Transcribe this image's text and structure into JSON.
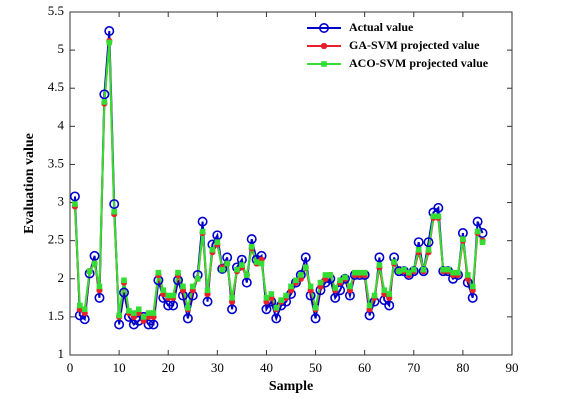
{
  "chart_data": {
    "type": "line",
    "x_label": "Sample",
    "y_label": "Evaluation value",
    "x": [
      1,
      2,
      3,
      4,
      5,
      6,
      7,
      8,
      9,
      10,
      11,
      12,
      13,
      14,
      15,
      16,
      17,
      18,
      19,
      20,
      21,
      22,
      23,
      24,
      25,
      26,
      27,
      28,
      29,
      30,
      31,
      32,
      33,
      34,
      35,
      36,
      37,
      38,
      39,
      40,
      41,
      42,
      43,
      44,
      45,
      46,
      47,
      48,
      49,
      50,
      51,
      52,
      53,
      54,
      55,
      56,
      57,
      58,
      59,
      60,
      61,
      62,
      63,
      64,
      65,
      66,
      67,
      68,
      69,
      70,
      71,
      72,
      73,
      74,
      75,
      76,
      77,
      78,
      79,
      80,
      81,
      82,
      83,
      84
    ],
    "series": [
      {
        "name": "Actual value",
        "color": "#0000cc",
        "marker": "circle",
        "values": [
          3.08,
          1.52,
          1.47,
          2.07,
          2.3,
          1.75,
          4.42,
          5.25,
          2.98,
          1.4,
          1.82,
          1.5,
          1.4,
          1.45,
          1.5,
          1.4,
          1.4,
          1.98,
          1.75,
          1.65,
          1.65,
          1.98,
          1.78,
          1.48,
          1.78,
          2.05,
          2.75,
          1.7,
          2.45,
          2.57,
          2.13,
          2.28,
          1.6,
          2.15,
          2.25,
          1.95,
          2.52,
          2.25,
          2.3,
          1.6,
          1.7,
          1.48,
          1.65,
          1.7,
          1.8,
          1.95,
          2.05,
          2.28,
          1.78,
          1.48,
          1.85,
          1.95,
          2.0,
          1.75,
          1.85,
          2.0,
          1.78,
          2.05,
          2.05,
          2.05,
          1.52,
          1.7,
          2.28,
          1.72,
          1.65,
          2.28,
          2.1,
          2.1,
          2.05,
          2.1,
          2.48,
          2.1,
          2.48,
          2.87,
          2.93,
          2.1,
          2.1,
          2.0,
          2.05,
          2.6,
          1.95,
          1.75,
          2.75,
          2.6
        ]
      },
      {
        "name": "GA-SVM projected value",
        "color": "#e8202a",
        "marker": "star",
        "values": [
          2.95,
          1.6,
          1.55,
          2.1,
          2.2,
          1.85,
          4.3,
          5.12,
          2.85,
          1.5,
          1.95,
          1.55,
          1.5,
          1.55,
          1.45,
          1.5,
          1.5,
          2.05,
          1.8,
          1.75,
          1.75,
          2.05,
          1.85,
          1.6,
          1.85,
          2.0,
          2.6,
          1.8,
          2.35,
          2.45,
          2.15,
          2.2,
          1.7,
          2.1,
          2.15,
          2.05,
          2.4,
          2.2,
          2.25,
          1.7,
          1.75,
          1.6,
          1.7,
          1.75,
          1.85,
          1.95,
          2.0,
          2.15,
          1.85,
          1.6,
          1.9,
          2.0,
          2.05,
          1.85,
          1.95,
          2.0,
          1.85,
          2.05,
          2.05,
          2.05,
          1.6,
          1.75,
          2.15,
          1.8,
          1.75,
          2.2,
          2.1,
          2.1,
          2.05,
          2.1,
          2.35,
          2.1,
          2.35,
          2.8,
          2.8,
          2.1,
          2.1,
          2.05,
          2.05,
          2.5,
          2.0,
          1.85,
          2.6,
          2.5
        ]
      },
      {
        "name": "ACO-SVM projected value",
        "color": "#33dd33",
        "marker": "square",
        "values": [
          2.98,
          1.65,
          1.6,
          2.1,
          2.2,
          1.9,
          4.32,
          5.1,
          2.88,
          1.52,
          1.98,
          1.58,
          1.55,
          1.6,
          1.5,
          1.55,
          1.55,
          2.08,
          1.85,
          1.78,
          1.78,
          2.08,
          1.9,
          1.62,
          1.9,
          2.0,
          2.62,
          1.85,
          2.38,
          2.48,
          2.12,
          2.2,
          1.75,
          2.12,
          2.18,
          2.05,
          2.42,
          2.22,
          2.2,
          1.75,
          1.8,
          1.62,
          1.72,
          1.78,
          1.9,
          1.98,
          2.05,
          2.15,
          1.9,
          1.62,
          1.95,
          2.05,
          2.05,
          1.88,
          1.98,
          2.02,
          1.9,
          2.08,
          2.08,
          2.08,
          1.65,
          1.78,
          2.18,
          1.85,
          1.8,
          2.22,
          2.1,
          2.12,
          2.08,
          2.12,
          2.38,
          2.12,
          2.38,
          2.82,
          2.82,
          2.12,
          2.12,
          2.08,
          2.08,
          2.52,
          2.05,
          1.9,
          2.62,
          2.48
        ]
      }
    ],
    "xlim": [
      0,
      90
    ],
    "xticks": [
      0,
      10,
      20,
      30,
      40,
      50,
      60,
      70,
      80,
      90
    ],
    "ylim": [
      1,
      5.5
    ],
    "yticks": [
      1,
      1.5,
      2,
      2.5,
      3,
      3.5,
      4,
      4.5,
      5,
      5.5
    ],
    "legend": "top-right",
    "grid": false
  }
}
